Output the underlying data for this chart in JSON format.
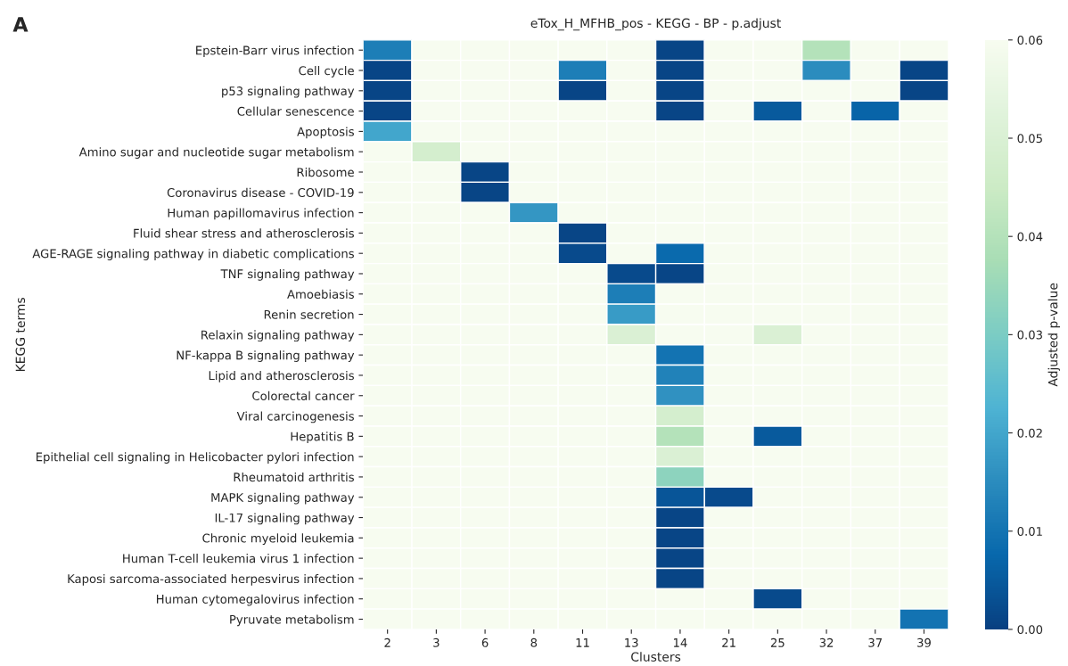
{
  "chart_data": {
    "type": "heatmap",
    "title": "eTox_H_MFHB_pos - KEGG - BP - p.adjust",
    "xlabel": "Clusters",
    "ylabel": "KEGG terms",
    "clabel": "Adjusted p-value",
    "annotations": [
      "A"
    ],
    "categories": [
      "2",
      "3",
      "6",
      "8",
      "11",
      "13",
      "14",
      "21",
      "25",
      "32",
      "37",
      "39"
    ],
    "y_categories": [
      "Epstein-Barr virus infection",
      "Cell cycle",
      "p53 signaling pathway",
      "Cellular senescence",
      "Apoptosis",
      "Amino sugar and nucleotide sugar metabolism",
      "Ribosome",
      "Coronavirus disease - COVID-19",
      "Human papillomavirus infection",
      "Fluid shear stress and atherosclerosis",
      "AGE-RAGE signaling pathway in diabetic complications",
      "TNF signaling pathway",
      "Amoebiasis",
      "Renin secretion",
      "Relaxin signaling pathway",
      "NF-kappa B signaling pathway",
      "Lipid and atherosclerosis",
      "Colorectal cancer",
      "Viral carcinogenesis",
      "Hepatitis B",
      "Epithelial cell signaling in Helicobacter pylori infection",
      "Rheumatoid arthritis",
      "MAPK signaling pathway",
      "IL-17 signaling pathway",
      "Chronic myeloid leukemia",
      "Human T-cell leukemia virus 1 infection",
      "Kaposi sarcoma-associated herpesvirus infection",
      "Human cytomegalovirus infection",
      "Pyruvate metabolism"
    ],
    "cells": [
      [
        0.012,
        0.06,
        0.06,
        0.06,
        0.06,
        0.06,
        0.001,
        0.06,
        0.06,
        0.04,
        0.06,
        0.06
      ],
      [
        0.001,
        0.06,
        0.06,
        0.06,
        0.012,
        0.06,
        0.001,
        0.06,
        0.06,
        0.015,
        0.06,
        0.001
      ],
      [
        0.001,
        0.06,
        0.06,
        0.06,
        0.001,
        0.06,
        0.001,
        0.06,
        0.06,
        0.06,
        0.06,
        0.001
      ],
      [
        0.001,
        0.06,
        0.06,
        0.06,
        0.06,
        0.06,
        0.001,
        0.06,
        0.005,
        0.06,
        0.007,
        0.06
      ],
      [
        0.02,
        0.06,
        0.06,
        0.06,
        0.06,
        0.06,
        0.06,
        0.06,
        0.06,
        0.06,
        0.06,
        0.06
      ],
      [
        0.06,
        0.048,
        0.06,
        0.06,
        0.06,
        0.06,
        0.06,
        0.06,
        0.06,
        0.06,
        0.06,
        0.06
      ],
      [
        0.06,
        0.06,
        0.001,
        0.06,
        0.06,
        0.06,
        0.06,
        0.06,
        0.06,
        0.06,
        0.06,
        0.06
      ],
      [
        0.06,
        0.06,
        0.001,
        0.06,
        0.06,
        0.06,
        0.06,
        0.06,
        0.06,
        0.06,
        0.06,
        0.06
      ],
      [
        0.06,
        0.06,
        0.06,
        0.017,
        0.06,
        0.06,
        0.06,
        0.06,
        0.06,
        0.06,
        0.06,
        0.06
      ],
      [
        0.06,
        0.06,
        0.06,
        0.06,
        0.001,
        0.06,
        0.06,
        0.06,
        0.06,
        0.06,
        0.06,
        0.06
      ],
      [
        0.06,
        0.06,
        0.06,
        0.06,
        0.002,
        0.06,
        0.008,
        0.06,
        0.06,
        0.06,
        0.06,
        0.06
      ],
      [
        0.06,
        0.06,
        0.06,
        0.06,
        0.06,
        0.002,
        0.001,
        0.06,
        0.06,
        0.06,
        0.06,
        0.06
      ],
      [
        0.06,
        0.06,
        0.06,
        0.06,
        0.06,
        0.012,
        0.06,
        0.06,
        0.06,
        0.06,
        0.06,
        0.06
      ],
      [
        0.06,
        0.06,
        0.06,
        0.06,
        0.06,
        0.018,
        0.06,
        0.06,
        0.06,
        0.06,
        0.06,
        0.06
      ],
      [
        0.06,
        0.06,
        0.06,
        0.06,
        0.06,
        0.05,
        0.06,
        0.06,
        0.05,
        0.06,
        0.06,
        0.06
      ],
      [
        0.06,
        0.06,
        0.06,
        0.06,
        0.06,
        0.06,
        0.01,
        0.06,
        0.06,
        0.06,
        0.06,
        0.06
      ],
      [
        0.06,
        0.06,
        0.06,
        0.06,
        0.06,
        0.06,
        0.013,
        0.06,
        0.06,
        0.06,
        0.06,
        0.06
      ],
      [
        0.06,
        0.06,
        0.06,
        0.06,
        0.06,
        0.06,
        0.016,
        0.06,
        0.06,
        0.06,
        0.06,
        0.06
      ],
      [
        0.06,
        0.06,
        0.06,
        0.06,
        0.06,
        0.06,
        0.048,
        0.06,
        0.06,
        0.06,
        0.06,
        0.06
      ],
      [
        0.06,
        0.06,
        0.06,
        0.06,
        0.06,
        0.06,
        0.04,
        0.06,
        0.005,
        0.06,
        0.06,
        0.06
      ],
      [
        0.06,
        0.06,
        0.06,
        0.06,
        0.06,
        0.06,
        0.05,
        0.06,
        0.06,
        0.06,
        0.06,
        0.06
      ],
      [
        0.06,
        0.06,
        0.06,
        0.06,
        0.06,
        0.06,
        0.033,
        0.06,
        0.06,
        0.06,
        0.06,
        0.06
      ],
      [
        0.06,
        0.06,
        0.06,
        0.06,
        0.06,
        0.06,
        0.004,
        0.002,
        0.06,
        0.06,
        0.06,
        0.06
      ],
      [
        0.06,
        0.06,
        0.06,
        0.06,
        0.06,
        0.06,
        0.001,
        0.06,
        0.06,
        0.06,
        0.06,
        0.06
      ],
      [
        0.06,
        0.06,
        0.06,
        0.06,
        0.06,
        0.06,
        0.001,
        0.06,
        0.06,
        0.06,
        0.06,
        0.06
      ],
      [
        0.06,
        0.06,
        0.06,
        0.06,
        0.06,
        0.06,
        0.001,
        0.06,
        0.06,
        0.06,
        0.06,
        0.06
      ],
      [
        0.06,
        0.06,
        0.06,
        0.06,
        0.06,
        0.06,
        0.001,
        0.06,
        0.06,
        0.06,
        0.06,
        0.06
      ],
      [
        0.06,
        0.06,
        0.06,
        0.06,
        0.06,
        0.06,
        0.06,
        0.06,
        0.002,
        0.06,
        0.06,
        0.06
      ],
      [
        0.06,
        0.06,
        0.06,
        0.06,
        0.06,
        0.06,
        0.06,
        0.06,
        0.06,
        0.06,
        0.06,
        0.01
      ]
    ],
    "clim": [
      0,
      0.06
    ],
    "cticks": [
      {
        "value": 0,
        "label": "0.00"
      },
      {
        "value": 0.01,
        "label": "0.01"
      },
      {
        "value": 0.02,
        "label": "0.02"
      },
      {
        "value": 0.03,
        "label": "0.03"
      },
      {
        "value": 0.04,
        "label": "0.04"
      },
      {
        "value": 0.05,
        "label": "0.05"
      },
      {
        "value": 0.06,
        "label": "0.06"
      }
    ]
  }
}
